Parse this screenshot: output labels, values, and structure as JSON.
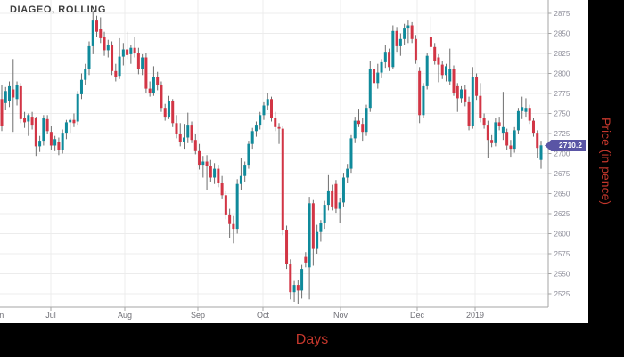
{
  "title": "DIAGEO, ROLLING",
  "axes": {
    "y_title": "Price (in pence)",
    "x_title": "Days"
  },
  "last_price": {
    "label": "2710.2",
    "value": 2710.2
  },
  "colors": {
    "up": "#0F8A9B",
    "down": "#D23545",
    "wick": "#6E6E6E",
    "grid": "#ECECEC",
    "axis_line": "#A6A6A6",
    "y_tick_label": "#8D8D99",
    "x_tick_label": "#6D6D74",
    "badge_bg": "#5A55A5",
    "badge_text": "#FFFFFF",
    "axis_title_red": "#C4372C",
    "title_text": "#3F3F3F",
    "panel_bg": "#FFFFFF",
    "page_bg": "#000000"
  },
  "chart_data": {
    "type": "candlestick",
    "title": "DIAGEO, ROLLING",
    "xlabel": "Days",
    "ylabel": "Price (in pence)",
    "legend": [],
    "grid": true,
    "y_axis_side": "right",
    "ylim": [
      2505,
      2885
    ],
    "y_ticks": [
      2875,
      2850,
      2825,
      2800,
      2775,
      2750,
      2725,
      2700,
      2675,
      2650,
      2625,
      2600,
      2575,
      2550,
      2525
    ],
    "x_ticks": [
      {
        "label": "Jun",
        "x": -3
      },
      {
        "label": "Jul",
        "x": 57
      },
      {
        "label": "Aug",
        "x": 140
      },
      {
        "label": "Sep",
        "x": 222
      },
      {
        "label": "Oct",
        "x": 295
      },
      {
        "label": "Nov",
        "x": 382
      },
      {
        "label": "Dec",
        "x": 468
      },
      {
        "label": "2019",
        "x": 533
      }
    ],
    "last_close": 2710.2,
    "candles": [
      [
        2768,
        2785,
        2728,
        2735
      ],
      [
        2763,
        2783,
        2755,
        2778
      ],
      [
        2766,
        2790,
        2758,
        2784
      ],
      [
        2780,
        2818,
        2727,
        2770
      ],
      [
        2768,
        2790,
        2760,
        2786
      ],
      [
        2784,
        2788,
        2738,
        2743
      ],
      [
        2745,
        2752,
        2732,
        2739
      ],
      [
        2740,
        2750,
        2722,
        2748
      ],
      [
        2746,
        2752,
        2730,
        2736
      ],
      [
        2744,
        2746,
        2697,
        2709
      ],
      [
        2709,
        2722,
        2702,
        2716
      ],
      [
        2716,
        2748,
        2710,
        2745
      ],
      [
        2743,
        2748,
        2724,
        2728
      ],
      [
        2727,
        2735,
        2705,
        2710
      ],
      [
        2710,
        2722,
        2703,
        2718
      ],
      [
        2715,
        2720,
        2698,
        2704
      ],
      [
        2705,
        2730,
        2700,
        2726
      ],
      [
        2726,
        2742,
        2718,
        2739
      ],
      [
        2739,
        2745,
        2726,
        2742
      ],
      [
        2742,
        2750,
        2733,
        2738
      ],
      [
        2740,
        2778,
        2736,
        2774
      ],
      [
        2774,
        2800,
        2768,
        2792
      ],
      [
        2792,
        2812,
        2785,
        2806
      ],
      [
        2806,
        2840,
        2798,
        2834
      ],
      [
        2834,
        2878,
        2824,
        2866
      ],
      [
        2866,
        2872,
        2845,
        2852
      ],
      [
        2855,
        2870,
        2838,
        2844
      ],
      [
        2846,
        2852,
        2822,
        2829
      ],
      [
        2829,
        2842,
        2820,
        2836
      ],
      [
        2836,
        2840,
        2798,
        2803
      ],
      [
        2803,
        2812,
        2790,
        2796
      ],
      [
        2797,
        2844,
        2793,
        2821
      ],
      [
        2821,
        2838,
        2810,
        2830
      ],
      [
        2830,
        2852,
        2818,
        2823
      ],
      [
        2824,
        2836,
        2812,
        2832
      ],
      [
        2832,
        2846,
        2820,
        2826
      ],
      [
        2826,
        2832,
        2799,
        2805
      ],
      [
        2805,
        2824,
        2798,
        2820
      ],
      [
        2820,
        2826,
        2776,
        2781
      ],
      [
        2781,
        2790,
        2771,
        2776
      ],
      [
        2776,
        2809,
        2772,
        2796
      ],
      [
        2796,
        2802,
        2779,
        2785
      ],
      [
        2785,
        2790,
        2752,
        2757
      ],
      [
        2757,
        2762,
        2741,
        2746
      ],
      [
        2746,
        2772,
        2743,
        2765
      ],
      [
        2765,
        2768,
        2733,
        2738
      ],
      [
        2738,
        2748,
        2719,
        2724
      ],
      [
        2724,
        2738,
        2709,
        2714
      ],
      [
        2714,
        2737,
        2706,
        2720
      ],
      [
        2720,
        2751,
        2713,
        2736
      ],
      [
        2736,
        2740,
        2713,
        2717
      ],
      [
        2717,
        2724,
        2699,
        2703
      ],
      [
        2703,
        2712,
        2680,
        2686
      ],
      [
        2686,
        2697,
        2670,
        2690
      ],
      [
        2690,
        2698,
        2655,
        2684
      ],
      [
        2684,
        2692,
        2665,
        2670
      ],
      [
        2670,
        2688,
        2662,
        2681
      ],
      [
        2681,
        2686,
        2658,
        2663
      ],
      [
        2663,
        2672,
        2644,
        2648
      ],
      [
        2648,
        2654,
        2618,
        2624
      ],
      [
        2624,
        2631,
        2595,
        2612
      ],
      [
        2612,
        2622,
        2588,
        2606
      ],
      [
        2606,
        2668,
        2600,
        2662
      ],
      [
        2662,
        2695,
        2655,
        2672
      ],
      [
        2672,
        2690,
        2665,
        2686
      ],
      [
        2686,
        2716,
        2681,
        2712
      ],
      [
        2712,
        2732,
        2706,
        2728
      ],
      [
        2728,
        2740,
        2721,
        2736
      ],
      [
        2736,
        2752,
        2730,
        2748
      ],
      [
        2748,
        2764,
        2742,
        2760
      ],
      [
        2760,
        2775,
        2754,
        2768
      ],
      [
        2768,
        2771,
        2740,
        2745
      ],
      [
        2745,
        2752,
        2728,
        2733
      ],
      [
        2733,
        2738,
        2712,
        2731
      ],
      [
        2731,
        2735,
        2598,
        2605
      ],
      [
        2605,
        2610,
        2556,
        2562
      ],
      [
        2562,
        2568,
        2518,
        2527
      ],
      [
        2527,
        2541,
        2515,
        2536
      ],
      [
        2536,
        2542,
        2512,
        2529
      ],
      [
        2529,
        2561,
        2519,
        2556
      ],
      [
        2571,
        2577,
        2558,
        2564
      ],
      [
        2558,
        2646,
        2518,
        2638
      ],
      [
        2638,
        2642,
        2560,
        2581
      ],
      [
        2581,
        2611,
        2575,
        2602
      ],
      [
        2602,
        2617,
        2590,
        2613
      ],
      [
        2613,
        2641,
        2606,
        2636
      ],
      [
        2636,
        2673,
        2629,
        2654
      ],
      [
        2654,
        2661,
        2629,
        2634
      ],
      [
        2662,
        2667,
        2626,
        2631
      ],
      [
        2631,
        2645,
        2613,
        2639
      ],
      [
        2639,
        2676,
        2634,
        2670
      ],
      [
        2670,
        2687,
        2663,
        2681
      ],
      [
        2681,
        2723,
        2676,
        2719
      ],
      [
        2719,
        2746,
        2713,
        2741
      ],
      [
        2741,
        2756,
        2733,
        2737
      ],
      [
        2737,
        2744,
        2716,
        2727
      ],
      [
        2727,
        2761,
        2722,
        2757
      ],
      [
        2757,
        2816,
        2752,
        2806
      ],
      [
        2806,
        2810,
        2783,
        2788
      ],
      [
        2788,
        2812,
        2781,
        2801
      ],
      [
        2801,
        2818,
        2794,
        2814
      ],
      [
        2814,
        2836,
        2807,
        2827
      ],
      [
        2827,
        2831,
        2803,
        2808
      ],
      [
        2808,
        2860,
        2805,
        2853
      ],
      [
        2853,
        2858,
        2827,
        2834
      ],
      [
        2834,
        2850,
        2822,
        2843
      ],
      [
        2843,
        2862,
        2836,
        2856
      ],
      [
        2856,
        2866,
        2838,
        2860
      ],
      [
        2860,
        2864,
        2838,
        2843
      ],
      [
        2843,
        2848,
        2812,
        2817
      ],
      [
        2803,
        2808,
        2738,
        2748
      ],
      [
        2748,
        2788,
        2744,
        2784
      ],
      [
        2784,
        2826,
        2780,
        2822
      ],
      [
        2846,
        2871,
        2828,
        2833
      ],
      [
        2833,
        2838,
        2811,
        2816
      ],
      [
        2820,
        2824,
        2789,
        2811
      ],
      [
        2811,
        2816,
        2793,
        2798
      ],
      [
        2798,
        2812,
        2790,
        2809
      ],
      [
        2790,
        2831,
        2786,
        2806
      ],
      [
        2806,
        2810,
        2772,
        2776
      ],
      [
        2784,
        2788,
        2752,
        2769
      ],
      [
        2769,
        2784,
        2763,
        2780
      ],
      [
        2780,
        2786,
        2759,
        2764
      ],
      [
        2764,
        2771,
        2729,
        2735
      ],
      [
        2735,
        2808,
        2731,
        2795
      ],
      [
        2795,
        2800,
        2767,
        2772
      ],
      [
        2772,
        2788,
        2739,
        2744
      ],
      [
        2744,
        2750,
        2731,
        2736
      ],
      [
        2736,
        2741,
        2694,
        2717
      ],
      [
        2717,
        2723,
        2708,
        2713
      ],
      [
        2713,
        2744,
        2709,
        2739
      ],
      [
        2739,
        2746,
        2729,
        2734
      ],
      [
        2726,
        2777,
        2717,
        2733
      ],
      [
        2727,
        2731,
        2705,
        2710
      ],
      [
        2710,
        2717,
        2696,
        2706
      ],
      [
        2706,
        2733,
        2701,
        2729
      ],
      [
        2729,
        2757,
        2725,
        2753
      ],
      [
        2753,
        2771,
        2743,
        2758
      ],
      [
        2752,
        2769,
        2746,
        2757
      ],
      [
        2757,
        2761,
        2737,
        2741
      ],
      [
        2741,
        2745,
        2721,
        2726
      ],
      [
        2726,
        2729,
        2694,
        2707
      ],
      [
        2692,
        2716,
        2681,
        2710.2
      ]
    ]
  }
}
